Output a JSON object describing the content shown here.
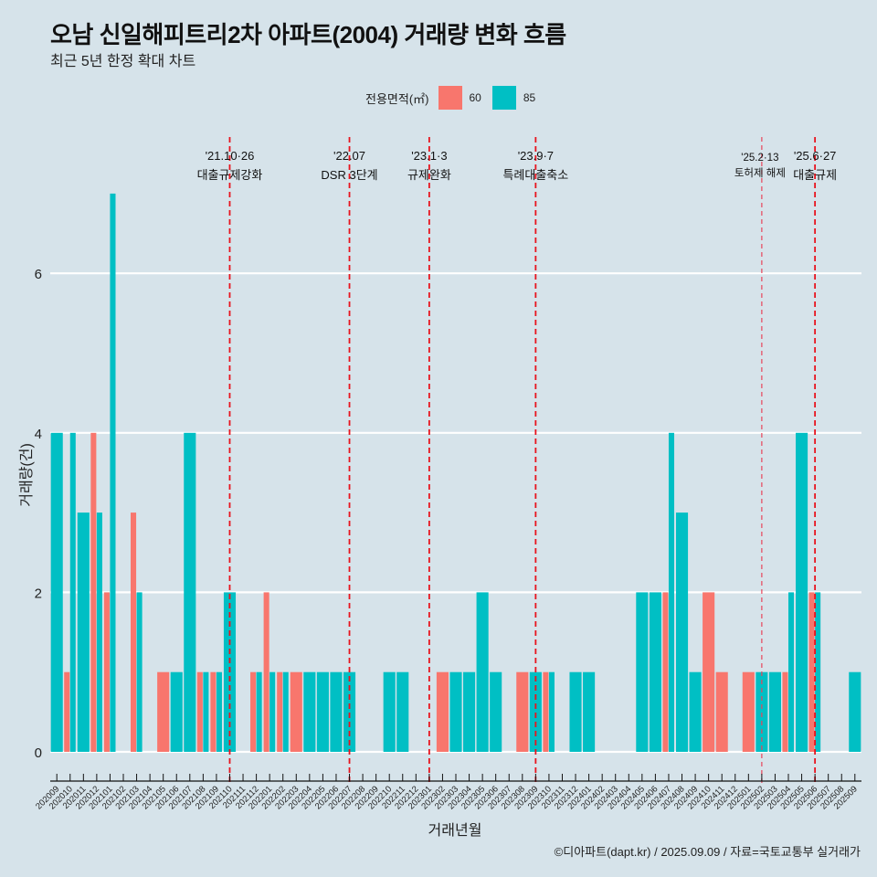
{
  "title": "오남 신일해피트리2차 아파트(2004) 거래량 변화 흐름",
  "subtitle": "최근 5년 한정 확대 차트",
  "legend": {
    "title": "전용면적(㎡)",
    "items": [
      {
        "label": "60",
        "color": "#f8766d"
      },
      {
        "label": "85",
        "color": "#00bfc4"
      }
    ]
  },
  "footer": "©디아파트(dapt.kr) / 2025.09.09 / 자료=국토교통부 실거래가",
  "chart_data": {
    "type": "bar",
    "title": "오남 신일해피트리2차 아파트(2004) 거래량 변화 흐름",
    "xlabel": "거래년월",
    "ylabel": "거래량(건)",
    "ylim": [
      -0.35,
      7.7
    ],
    "yticks": [
      0,
      2,
      4,
      6
    ],
    "grid": true,
    "legend_position": "top",
    "categories": [
      "202009",
      "202010",
      "202011",
      "202012",
      "202101",
      "202102",
      "202103",
      "202104",
      "202105",
      "202106",
      "202107",
      "202108",
      "202109",
      "202110",
      "202111",
      "202112",
      "202201",
      "202202",
      "202203",
      "202204",
      "202205",
      "202206",
      "202207",
      "202208",
      "202209",
      "202210",
      "202211",
      "202212",
      "202301",
      "202302",
      "202303",
      "202304",
      "202305",
      "202306",
      "202307",
      "202308",
      "202309",
      "202310",
      "202311",
      "202312",
      "202401",
      "202402",
      "202403",
      "202404",
      "202405",
      "202406",
      "202407",
      "202408",
      "202409",
      "202410",
      "202411",
      "202412",
      "202501",
      "202502",
      "202503",
      "202504",
      "202505",
      "202506",
      "202507",
      "202508",
      "202509"
    ],
    "series": [
      {
        "name": "60",
        "color": "#f8766d",
        "values": [
          0,
          1,
          0,
          4,
          2,
          0,
          3,
          0,
          1,
          0,
          0,
          1,
          1,
          0,
          0,
          1,
          2,
          1,
          1,
          0,
          0,
          0,
          0,
          0,
          0,
          0,
          0,
          0,
          0,
          1,
          0,
          0,
          0,
          0,
          0,
          1,
          0,
          1,
          0,
          0,
          0,
          0,
          0,
          0,
          0,
          0,
          2,
          0,
          0,
          2,
          1,
          0,
          1,
          0,
          0,
          1,
          0,
          2,
          0,
          0,
          0
        ]
      },
      {
        "name": "85",
        "color": "#00bfc4",
        "values": [
          4,
          4,
          3,
          3,
          7,
          0,
          2,
          0,
          0,
          1,
          4,
          1,
          1,
          2,
          0,
          1,
          1,
          1,
          0,
          1,
          1,
          1,
          1,
          0,
          0,
          1,
          1,
          0,
          0,
          0,
          1,
          1,
          2,
          1,
          0,
          0,
          1,
          1,
          0,
          1,
          1,
          0,
          0,
          0,
          2,
          2,
          4,
          3,
          1,
          0,
          0,
          0,
          0,
          1,
          1,
          2,
          4,
          2,
          0,
          0,
          1
        ]
      }
    ],
    "annotations": [
      {
        "month": "202110",
        "date": "'21.10·26",
        "label": "대출규제강화",
        "style": "dashed"
      },
      {
        "month": "202207",
        "date": "'22.07",
        "label": "DSR 3단계",
        "style": "dashed"
      },
      {
        "month": "202301",
        "date": "'23.1·3",
        "label": "규제완화",
        "style": "dashed"
      },
      {
        "month": "202309",
        "date": "'23.9·7",
        "label": "특례대출축소",
        "style": "dashed"
      },
      {
        "month": "202502",
        "date": "'25.2·13",
        "label": "토허제 해제",
        "style": "light-dashed"
      },
      {
        "month": "202506",
        "date": "'25.6·27",
        "label": "대출규제",
        "style": "dashed"
      }
    ]
  }
}
